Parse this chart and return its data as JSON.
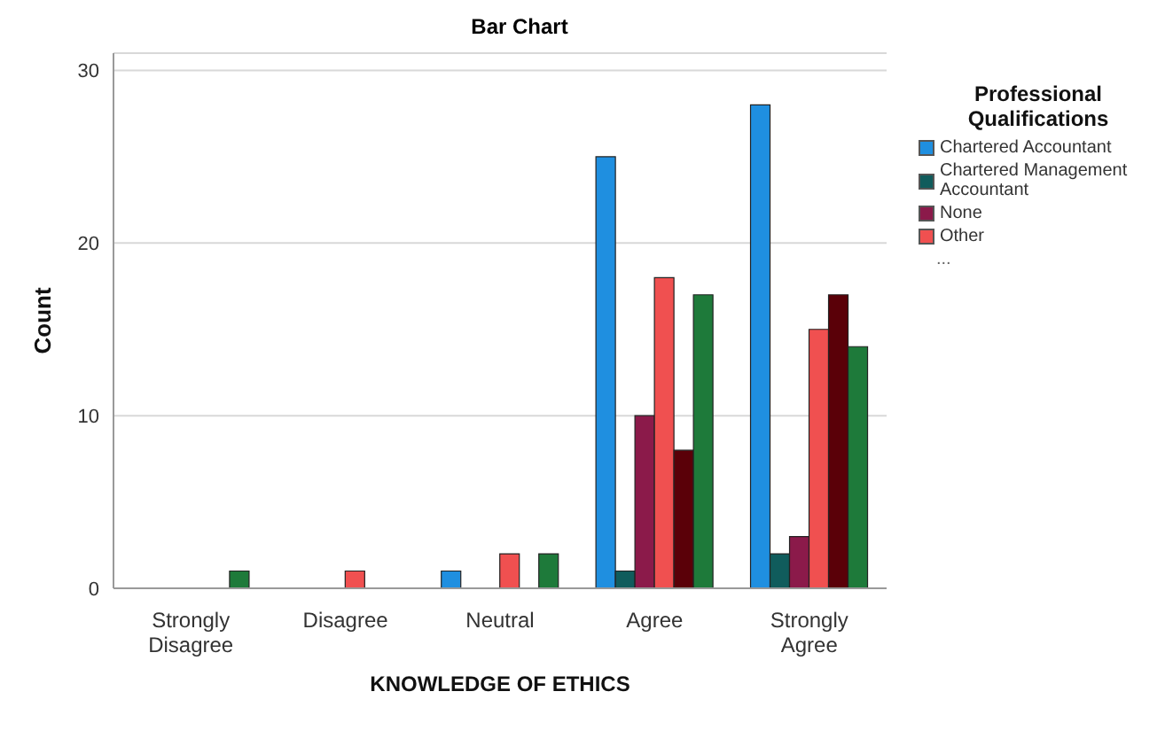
{
  "chart_data": {
    "type": "bar",
    "title": "Bar Chart",
    "xlabel": "KNOWLEDGE OF ETHICS",
    "ylabel": "Count",
    "legend_title": "Professional Qualifications",
    "categories": [
      "Strongly Disagree",
      "Disagree",
      "Neutral",
      "Agree",
      "Strongly Agree"
    ],
    "series": [
      {
        "name": "Chartered Accountant",
        "color": "#1f8fe0",
        "values": [
          0,
          0,
          1,
          25,
          28
        ]
      },
      {
        "name": "Chartered Management Accountant",
        "color": "#105c5c",
        "values": [
          0,
          0,
          0,
          1,
          2
        ]
      },
      {
        "name": "None",
        "color": "#8b1a4a",
        "values": [
          0,
          0,
          0,
          10,
          3
        ]
      },
      {
        "name": "Other",
        "color": "#f05050",
        "values": [
          0,
          1,
          2,
          18,
          15
        ]
      },
      {
        "color": "#5a0008",
        "values": [
          0,
          0,
          0,
          8,
          17
        ]
      },
      {
        "color": "#1e7a3a",
        "values": [
          1,
          0,
          2,
          17,
          14
        ]
      }
    ],
    "annotations": [
      "..."
    ],
    "ylim": [
      0,
      31
    ],
    "yticks": [
      0,
      10,
      20,
      30
    ],
    "grid": "y",
    "legend": "right"
  }
}
